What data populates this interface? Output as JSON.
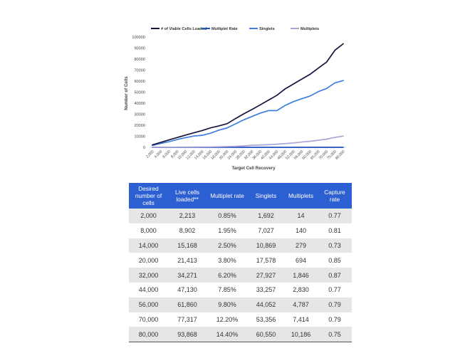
{
  "chart_data": {
    "type": "line",
    "title": "",
    "xlabel": "Target Cell Recovery",
    "ylabel": "Number of Cells",
    "ylim": [
      0,
      100000
    ],
    "legend_position": "top",
    "grid": false,
    "categories": [
      "2,000",
      "4,000",
      "6,000",
      "8,000",
      "10,000",
      "12,000",
      "14,000",
      "16,000",
      "18,000",
      "20,000",
      "24,000",
      "28,000",
      "32,000",
      "36,000",
      "40,000",
      "44,000",
      "48,000",
      "52,000",
      "56,000",
      "60,000",
      "65,000",
      "70,000",
      "75,000",
      "80,000"
    ],
    "series": [
      {
        "name": "# of Viable Cells Loaded",
        "color": "#14143c",
        "values": [
          2213,
          4500,
          6700,
          8902,
          11100,
          13200,
          15168,
          17600,
          19400,
          21413,
          26000,
          30300,
          34271,
          38500,
          42800,
          47130,
          53000,
          57400,
          61860,
          66200,
          71800,
          77317,
          88000,
          93868
        ]
      },
      {
        "name": "Multiplet Rate",
        "color": "#1c4fc0",
        "values": [
          0.85,
          1.0,
          1.2,
          1.95,
          1.6,
          2.0,
          2.5,
          2.7,
          3.0,
          3.8,
          4.2,
          4.8,
          6.2,
          6.5,
          7.0,
          7.85,
          8.3,
          8.9,
          9.8,
          10.4,
          11.2,
          12.2,
          13.3,
          14.4
        ]
      },
      {
        "name": "Singlets",
        "color": "#3d7ee0",
        "values": [
          1692,
          3500,
          5100,
          7027,
          8800,
          10200,
          10869,
          12800,
          15500,
          17578,
          21200,
          24900,
          27927,
          31000,
          33300,
          33257,
          38000,
          41400,
          44052,
          46500,
          50500,
          53356,
          58400,
          60550
        ]
      },
      {
        "name": "Multiplets",
        "color": "#a9a4d6",
        "values": [
          14,
          35,
          60,
          140,
          170,
          220,
          279,
          350,
          500,
          694,
          900,
          1300,
          1846,
          2100,
          2400,
          2830,
          3400,
          4000,
          4787,
          5500,
          6400,
          7414,
          9000,
          10186
        ]
      }
    ],
    "y_ticks": [
      "0",
      "10000",
      "20000",
      "30000",
      "40000",
      "50000",
      "60000",
      "70000",
      "80000",
      "90000",
      "100000"
    ]
  },
  "table": {
    "headers": [
      "Desired number of cells",
      "Live cells loaded**",
      "Multiplet rate",
      "Singlets",
      "Multiplets",
      "Capture rate"
    ],
    "rows": [
      [
        "2,000",
        "2,213",
        "0.85%",
        "1,692",
        "14",
        "0.77"
      ],
      [
        "8,000",
        "8,902",
        "1.95%",
        "7,027",
        "140",
        "0.81"
      ],
      [
        "14,000",
        "15,168",
        "2.50%",
        "10,869",
        "279",
        "0.73"
      ],
      [
        "20,000",
        "21,413",
        "3.80%",
        "17,578",
        "694",
        "0.85"
      ],
      [
        "32,000",
        "34,271",
        "6.20%",
        "27,927",
        "1,846",
        "0.87"
      ],
      [
        "44,000",
        "47,130",
        "7.85%",
        "33,257",
        "2,830",
        "0.77"
      ],
      [
        "56,000",
        "61,860",
        "9.80%",
        "44,052",
        "4,787",
        "0.79"
      ],
      [
        "70,000",
        "77,317",
        "12.20%",
        "53,356",
        "7,414",
        "0.79"
      ],
      [
        "80,000",
        "93,868",
        "14.40%",
        "60,550",
        "10,186",
        "0.75"
      ]
    ]
  }
}
